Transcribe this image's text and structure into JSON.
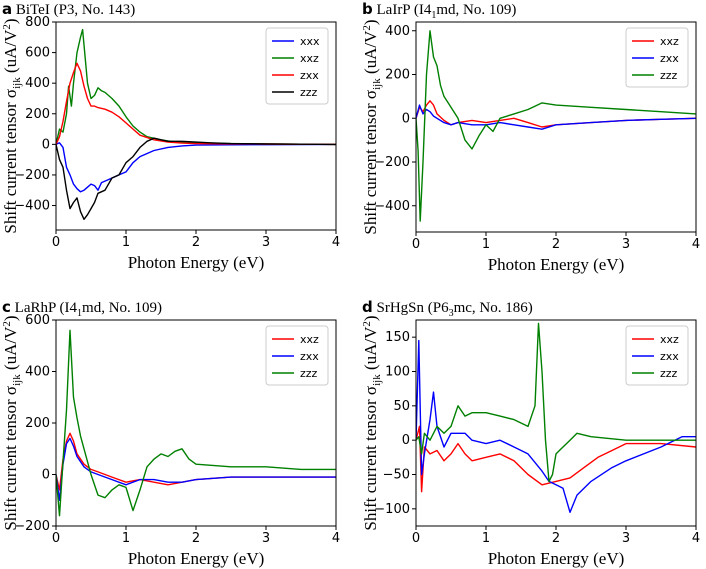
{
  "chart_data": [
    {
      "type": "line",
      "panel_letter": "a",
      "title_main": "BiTeI",
      "title_group": "(P3, No. 143)",
      "xlabel": "Photon Energy (eV)",
      "ylabel_main": "Shift current tensor σ",
      "ylabel_sub": "ijk",
      "ylabel_unit": "(uA/V",
      "ylabel_sup": "2",
      "ylabel_close": ")",
      "xlim": [
        0,
        4
      ],
      "ylim": [
        -560,
        800
      ],
      "xticks": [
        "0",
        "1",
        "2",
        "3",
        "4"
      ],
      "yticks": [
        -400,
        -200,
        0,
        200,
        400,
        600,
        800
      ],
      "legend_position": "top-right",
      "series": [
        {
          "name": "xxx",
          "color": "#0000ff",
          "x": [
            0,
            0.05,
            0.1,
            0.15,
            0.2,
            0.25,
            0.3,
            0.35,
            0.4,
            0.45,
            0.5,
            0.55,
            0.6,
            0.65,
            0.7,
            0.8,
            0.9,
            1.0,
            1.1,
            1.2,
            1.4,
            1.6,
            1.8,
            2.0,
            2.5,
            3.0,
            3.5,
            4.0
          ],
          "y": [
            0,
            10,
            -20,
            -150,
            -200,
            -260,
            -290,
            -310,
            -300,
            -280,
            -260,
            -270,
            -300,
            -250,
            -240,
            -220,
            -200,
            -180,
            -120,
            -80,
            -40,
            -20,
            -10,
            -5,
            -3,
            -2,
            -1,
            0
          ]
        },
        {
          "name": "xxz",
          "color": "#008000",
          "x": [
            0,
            0.05,
            0.1,
            0.15,
            0.18,
            0.22,
            0.25,
            0.3,
            0.35,
            0.38,
            0.42,
            0.45,
            0.5,
            0.55,
            0.6,
            0.65,
            0.7,
            0.8,
            0.9,
            1.0,
            1.1,
            1.2,
            1.3,
            1.5,
            1.7,
            2.0,
            2.5,
            3.0,
            3.5,
            4.0
          ],
          "y": [
            0,
            100,
            80,
            200,
            380,
            250,
            400,
            600,
            700,
            750,
            550,
            400,
            300,
            320,
            370,
            350,
            340,
            300,
            250,
            180,
            120,
            80,
            50,
            30,
            15,
            10,
            5,
            3,
            1,
            0
          ]
        },
        {
          "name": "zxx",
          "color": "#ff0000",
          "x": [
            0,
            0.05,
            0.1,
            0.15,
            0.2,
            0.25,
            0.3,
            0.35,
            0.4,
            0.45,
            0.5,
            0.55,
            0.6,
            0.7,
            0.8,
            0.9,
            1.0,
            1.1,
            1.2,
            1.4,
            1.6,
            1.8,
            2.0,
            2.5,
            3.0,
            3.5,
            4.0
          ],
          "y": [
            0,
            50,
            150,
            280,
            400,
            470,
            530,
            480,
            380,
            300,
            250,
            250,
            240,
            230,
            210,
            180,
            140,
            100,
            60,
            30,
            15,
            8,
            5,
            3,
            2,
            1,
            0
          ]
        },
        {
          "name": "zzz",
          "color": "#000000",
          "x": [
            0,
            0.05,
            0.1,
            0.15,
            0.2,
            0.25,
            0.3,
            0.35,
            0.4,
            0.45,
            0.5,
            0.55,
            0.6,
            0.7,
            0.8,
            0.9,
            1.0,
            1.1,
            1.2,
            1.3,
            1.4,
            1.5,
            1.6,
            1.8,
            2.0,
            2.2,
            2.5,
            3.0,
            3.5,
            4.0
          ],
          "y": [
            0,
            -100,
            -150,
            -300,
            -420,
            -380,
            -350,
            -440,
            -490,
            -460,
            -420,
            -380,
            -320,
            -300,
            -220,
            -200,
            -120,
            -80,
            -20,
            20,
            40,
            30,
            20,
            20,
            15,
            10,
            5,
            3,
            1,
            0
          ]
        }
      ]
    },
    {
      "type": "line",
      "panel_letter": "b",
      "title_main": "LaIrP",
      "title_group_pre": "(I4",
      "title_group_sub": "1",
      "title_group_post": "md, No. 109)",
      "xlabel": "Photon Energy (eV)",
      "ylabel_main": "Shift current tensor σ",
      "ylabel_sub": "ijk",
      "ylabel_unit": "(uA/V",
      "ylabel_sup": "2",
      "ylabel_close": ")",
      "xlim": [
        0,
        4
      ],
      "ylim": [
        -520,
        440
      ],
      "xticks": [
        "0",
        "1",
        "2",
        "3",
        "4"
      ],
      "yticks": [
        -400,
        -200,
        0,
        200,
        400
      ],
      "legend_position": "top-right",
      "series": [
        {
          "name": "xxz",
          "color": "#ff0000",
          "x": [
            0,
            0.05,
            0.1,
            0.15,
            0.2,
            0.25,
            0.3,
            0.4,
            0.5,
            0.6,
            0.8,
            1.0,
            1.2,
            1.4,
            1.6,
            1.8,
            2.0,
            2.5,
            3.0,
            3.5,
            4.0
          ],
          "y": [
            0,
            50,
            30,
            60,
            80,
            60,
            20,
            -10,
            -30,
            -20,
            -10,
            -20,
            -10,
            0,
            -20,
            -40,
            -30,
            -20,
            -10,
            -5,
            0
          ]
        },
        {
          "name": "zxx",
          "color": "#0000ff",
          "x": [
            0,
            0.05,
            0.1,
            0.15,
            0.2,
            0.25,
            0.3,
            0.4,
            0.5,
            0.6,
            0.8,
            1.0,
            1.2,
            1.4,
            1.6,
            1.8,
            2.0,
            2.5,
            3.0,
            3.5,
            4.0
          ],
          "y": [
            0,
            60,
            20,
            40,
            30,
            10,
            0,
            -20,
            -30,
            -20,
            -30,
            -30,
            -20,
            -30,
            -40,
            -50,
            -30,
            -20,
            -10,
            -5,
            0
          ]
        },
        {
          "name": "zzz",
          "color": "#008000",
          "x": [
            0,
            0.03,
            0.06,
            0.1,
            0.15,
            0.2,
            0.25,
            0.3,
            0.35,
            0.4,
            0.5,
            0.6,
            0.7,
            0.8,
            0.9,
            1.0,
            1.1,
            1.2,
            1.4,
            1.6,
            1.8,
            2.0,
            2.5,
            3.0,
            3.5,
            4.0
          ],
          "y": [
            0,
            -150,
            -470,
            -200,
            200,
            400,
            280,
            240,
            150,
            100,
            50,
            0,
            -100,
            -140,
            -80,
            -30,
            -60,
            0,
            20,
            40,
            70,
            60,
            50,
            40,
            30,
            20
          ]
        }
      ]
    },
    {
      "type": "line",
      "panel_letter": "c",
      "title_main": "LaRhP",
      "title_group_pre": "(I4",
      "title_group_sub": "1",
      "title_group_post": "md, No. 109)",
      "xlabel": "Photon Energy (eV)",
      "ylabel_main": "Shift current tensor σ",
      "ylabel_sub": "ijk",
      "ylabel_unit": "(uA/V",
      "ylabel_sup": "2",
      "ylabel_close": ")",
      "xlim": [
        0,
        4
      ],
      "ylim": [
        -200,
        600
      ],
      "xticks": [
        "0",
        "1",
        "2",
        "3",
        "4"
      ],
      "yticks": [
        -200,
        0,
        200,
        400,
        600
      ],
      "legend_position": "top-right",
      "series": [
        {
          "name": "xxz",
          "color": "#ff0000",
          "x": [
            0,
            0.05,
            0.1,
            0.15,
            0.2,
            0.25,
            0.3,
            0.4,
            0.5,
            0.6,
            0.8,
            1.0,
            1.2,
            1.4,
            1.6,
            1.8,
            2.0,
            2.5,
            3.0,
            3.5,
            4.0
          ],
          "y": [
            0,
            -60,
            60,
            130,
            160,
            130,
            80,
            40,
            20,
            10,
            -10,
            -30,
            -20,
            -30,
            -40,
            -30,
            -20,
            -10,
            -10,
            -10,
            -10
          ]
        },
        {
          "name": "zxx",
          "color": "#0000ff",
          "x": [
            0,
            0.05,
            0.1,
            0.15,
            0.2,
            0.25,
            0.3,
            0.4,
            0.5,
            0.6,
            0.8,
            1.0,
            1.2,
            1.4,
            1.6,
            1.8,
            2.0,
            2.5,
            3.0,
            3.5,
            4.0
          ],
          "y": [
            0,
            -100,
            40,
            120,
            140,
            110,
            70,
            30,
            10,
            0,
            -20,
            -40,
            -20,
            -20,
            -30,
            -30,
            -20,
            -10,
            -10,
            -10,
            -10
          ]
        },
        {
          "name": "zzz",
          "color": "#008000",
          "x": [
            0,
            0.05,
            0.1,
            0.15,
            0.2,
            0.25,
            0.3,
            0.35,
            0.4,
            0.5,
            0.6,
            0.7,
            0.8,
            0.9,
            1.0,
            1.1,
            1.2,
            1.3,
            1.4,
            1.5,
            1.6,
            1.7,
            1.8,
            1.9,
            2.0,
            2.5,
            3.0,
            3.5,
            4.0
          ],
          "y": [
            0,
            -160,
            50,
            250,
            560,
            300,
            220,
            150,
            100,
            0,
            -80,
            -90,
            -60,
            -40,
            -50,
            -140,
            -60,
            30,
            60,
            80,
            70,
            90,
            100,
            60,
            40,
            30,
            30,
            20,
            20
          ]
        }
      ]
    },
    {
      "type": "line",
      "panel_letter": "d",
      "title_main": "SrHgSn",
      "title_group_pre": "(P6",
      "title_group_sub": "3",
      "title_group_post": "mc, No. 186)",
      "xlabel": "Photon Energy (eV)",
      "ylabel_main": "Shift current tensor σ",
      "ylabel_sub": "ijk",
      "ylabel_unit": "(uA/V",
      "ylabel_sup": "2",
      "ylabel_close": ")",
      "xlim": [
        0,
        4
      ],
      "ylim": [
        -125,
        175
      ],
      "xticks": [
        "0",
        "1",
        "2",
        "3",
        "4"
      ],
      "yticks": [
        -100,
        -50,
        0,
        50,
        100,
        150
      ],
      "legend_position": "top-right",
      "series": [
        {
          "name": "xxz",
          "color": "#ff0000",
          "x": [
            0,
            0.05,
            0.08,
            0.12,
            0.2,
            0.3,
            0.4,
            0.5,
            0.6,
            0.7,
            0.8,
            1.0,
            1.2,
            1.4,
            1.6,
            1.8,
            2.0,
            2.2,
            2.4,
            2.6,
            2.8,
            3.0,
            3.5,
            4.0
          ],
          "y": [
            0,
            20,
            -75,
            -10,
            -20,
            -15,
            -30,
            -20,
            -5,
            -20,
            -30,
            -25,
            -20,
            -30,
            -50,
            -65,
            -60,
            -55,
            -40,
            -25,
            -15,
            -5,
            -5,
            -10
          ]
        },
        {
          "name": "zxx",
          "color": "#0000ff",
          "x": [
            0,
            0.04,
            0.08,
            0.12,
            0.2,
            0.25,
            0.3,
            0.4,
            0.5,
            0.6,
            0.7,
            0.8,
            1.0,
            1.2,
            1.4,
            1.6,
            1.8,
            1.9,
            2.0,
            2.1,
            2.2,
            2.3,
            2.5,
            2.8,
            3.0,
            3.5,
            3.8,
            4.0
          ],
          "y": [
            0,
            145,
            -50,
            -20,
            30,
            70,
            20,
            -10,
            10,
            10,
            10,
            0,
            -5,
            0,
            -10,
            -20,
            -45,
            -60,
            -65,
            -70,
            -105,
            -80,
            -60,
            -40,
            -30,
            -10,
            5,
            5
          ]
        },
        {
          "name": "zzz",
          "color": "#008000",
          "x": [
            0,
            0.04,
            0.08,
            0.12,
            0.2,
            0.3,
            0.4,
            0.5,
            0.6,
            0.7,
            0.8,
            1.0,
            1.2,
            1.4,
            1.6,
            1.7,
            1.75,
            1.8,
            1.85,
            1.9,
            1.95,
            2.0,
            2.1,
            2.2,
            2.3,
            2.5,
            3.0,
            3.5,
            4.0
          ],
          "y": [
            0,
            5,
            -20,
            10,
            0,
            20,
            10,
            20,
            50,
            35,
            40,
            40,
            35,
            30,
            20,
            50,
            170,
            100,
            0,
            -60,
            -50,
            -20,
            -10,
            0,
            10,
            5,
            0,
            0,
            0
          ]
        }
      ]
    }
  ]
}
